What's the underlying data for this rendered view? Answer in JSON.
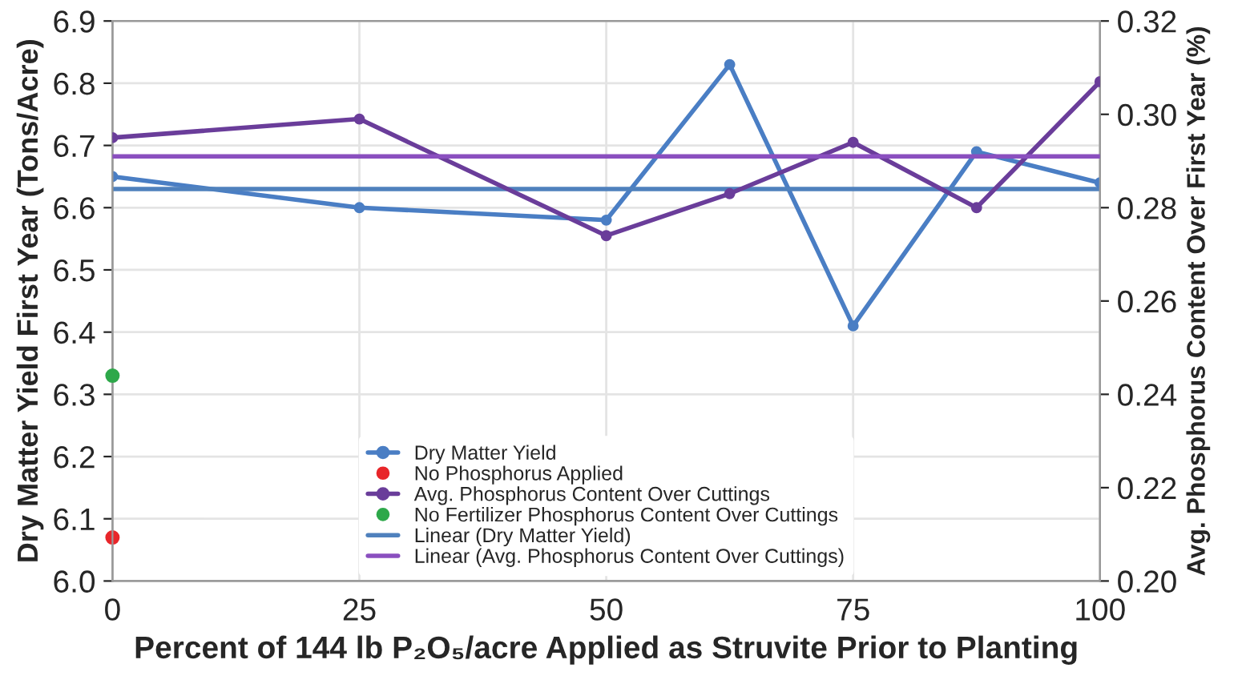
{
  "chart_data": {
    "type": "line",
    "xlabel": "Percent of 144 lb P₂O₅/acre Applied as Struvite Prior to Planting",
    "ylabel": "Dry Matter Yield First Year (Tons/Acre)",
    "y2label": "Avg. Phosphorus Content Over First Year (%)",
    "xlim": [
      0,
      100
    ],
    "xticks": [
      0,
      25,
      50,
      75,
      100
    ],
    "ylim": [
      6.0,
      6.9
    ],
    "yticks": [
      {
        "value": 6.0,
        "label": "6.0"
      },
      6.1,
      6.2,
      6.3,
      6.4,
      6.5,
      6.6,
      6.7,
      6.8,
      6.9
    ],
    "y2lim": [
      0.2,
      0.32
    ],
    "y2ticks": [
      {
        "value": 0.2,
        "label": "0.20"
      },
      0.22,
      0.24,
      0.26,
      0.28,
      {
        "value": 0.3,
        "label": "0.30"
      },
      0.32
    ],
    "grid": true,
    "legend": "bottom",
    "marker": "circle",
    "series": [
      {
        "name": "Dry Matter Yield",
        "color": "#4a7ec4",
        "x": [
          0,
          25,
          50,
          62.5,
          75,
          87.5,
          100
        ],
        "values": [
          6.65,
          6.6,
          6.58,
          6.83,
          6.41,
          6.69,
          6.64
        ]
      },
      {
        "name": "No Phosphorus Applied",
        "type": "scatter",
        "color": "#e8262a",
        "x": [
          0
        ],
        "values": [
          6.07
        ]
      },
      {
        "name": "Avg. Phosphorus Content Over Cuttings",
        "color": "#6a3d9a",
        "axis": "y2",
        "x": [
          0,
          25,
          50,
          62.5,
          75,
          87.5,
          100
        ],
        "values": [
          0.295,
          0.299,
          0.274,
          0.283,
          0.294,
          0.28,
          0.307
        ]
      },
      {
        "name": "No Fertilizer Phosphorus Content Over Cuttings",
        "type": "scatter",
        "color": "#2ea84a",
        "axis": "y2",
        "x": [
          0
        ],
        "values": [
          0.244
        ]
      },
      {
        "name": "Linear (Dry Matter Yield)",
        "color": "#4f81bd",
        "marker": "none",
        "x": [
          0,
          100
        ],
        "values": [
          6.63,
          6.63
        ]
      },
      {
        "name": "Linear (Avg. Phosphorus Content Over Cuttings)",
        "color": "#8a4fbf",
        "marker": "none",
        "axis": "y2",
        "x": [
          0,
          100
        ],
        "values": [
          0.291,
          0.291
        ]
      }
    ]
  }
}
